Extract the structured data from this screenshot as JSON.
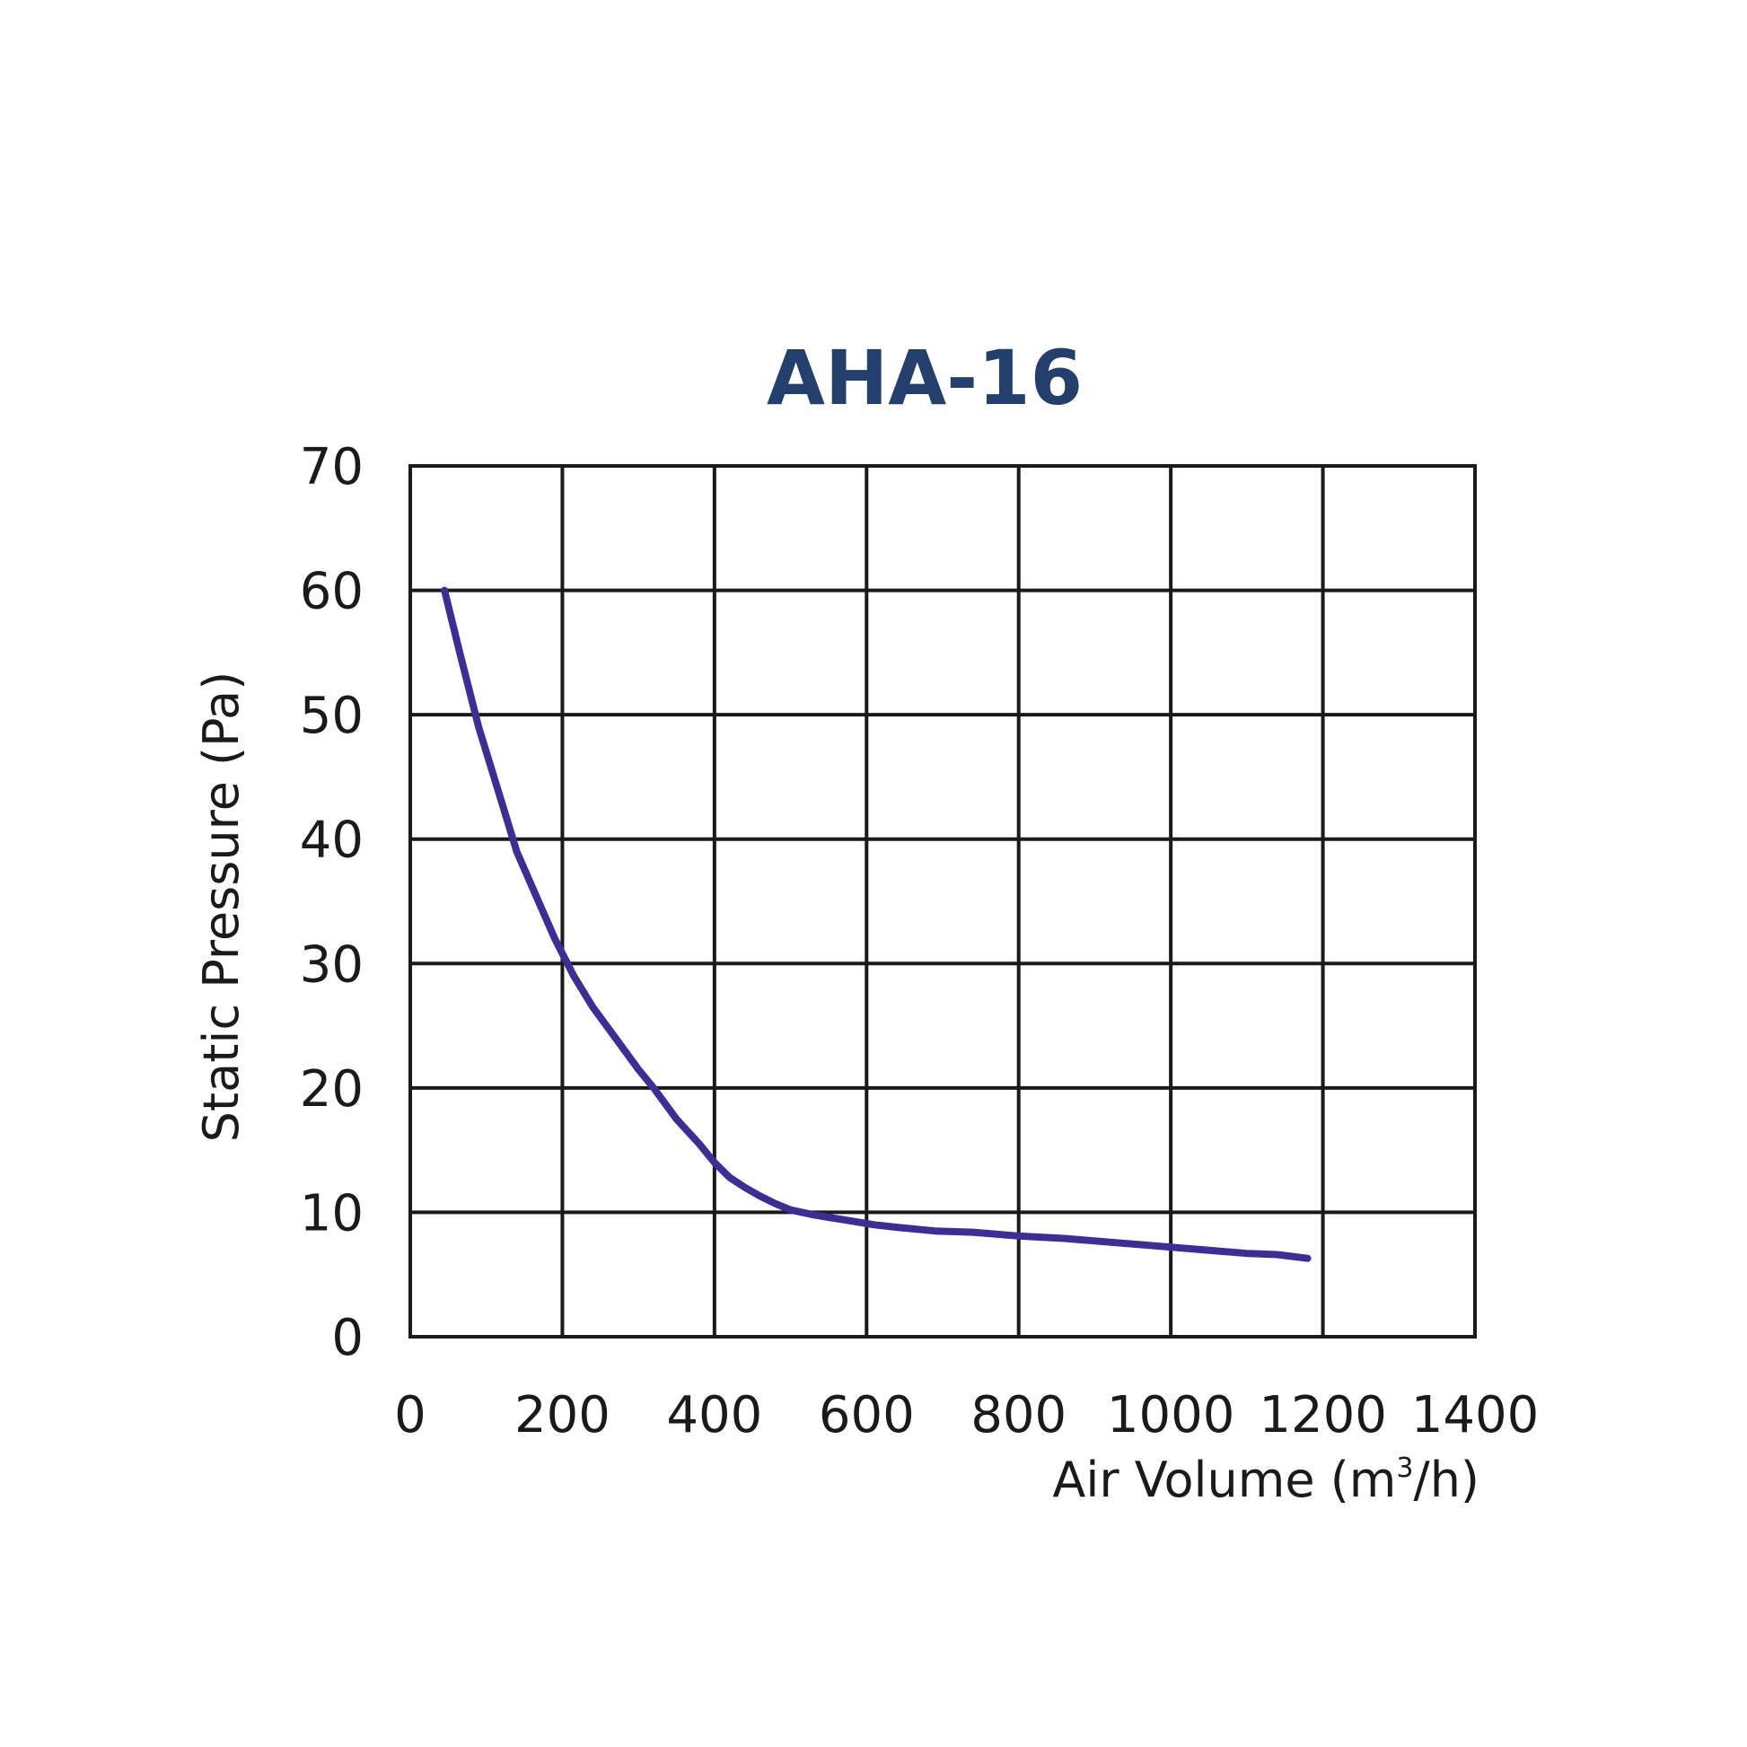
{
  "chart_data": {
    "type": "line",
    "title": "AHA-16",
    "xlabel": "Air Volume (m",
    "xlabel_sup": "3",
    "xlabel_suffix": "/h)",
    "ylabel": "Static Pressure (Pa)",
    "xlim": [
      0,
      1400
    ],
    "ylim": [
      0,
      70
    ],
    "x_ticks": [
      0,
      200,
      400,
      600,
      800,
      1000,
      1200,
      1400
    ],
    "y_ticks": [
      0,
      10,
      20,
      30,
      40,
      50,
      60,
      70
    ],
    "grid": true,
    "legend": "none",
    "series": [
      {
        "x": [
          45,
          65,
          90,
          120,
          140,
          165,
          190,
          215,
          240,
          270,
          300,
          320,
          350,
          380,
          400,
          420,
          440,
          460,
          480,
          500,
          530,
          550,
          580,
          610,
          640,
          690,
          740,
          800,
          860,
          920,
          980,
          1040,
          1100,
          1140,
          1180
        ],
        "y": [
          60,
          55,
          49,
          43,
          39,
          35.5,
          32,
          29,
          26.5,
          24,
          21.5,
          20,
          17.5,
          15.5,
          14,
          12.8,
          12,
          11.3,
          10.7,
          10.2,
          9.8,
          9.6,
          9.3,
          9,
          8.8,
          8.5,
          8.4,
          8.1,
          7.9,
          7.6,
          7.3,
          7,
          6.7,
          6.6,
          6.3
        ]
      }
    ]
  },
  "colors": {
    "title": "#233f6b",
    "line": "#3d2d96",
    "grid": "#1a1a1a",
    "text": "#1a1a1a"
  }
}
